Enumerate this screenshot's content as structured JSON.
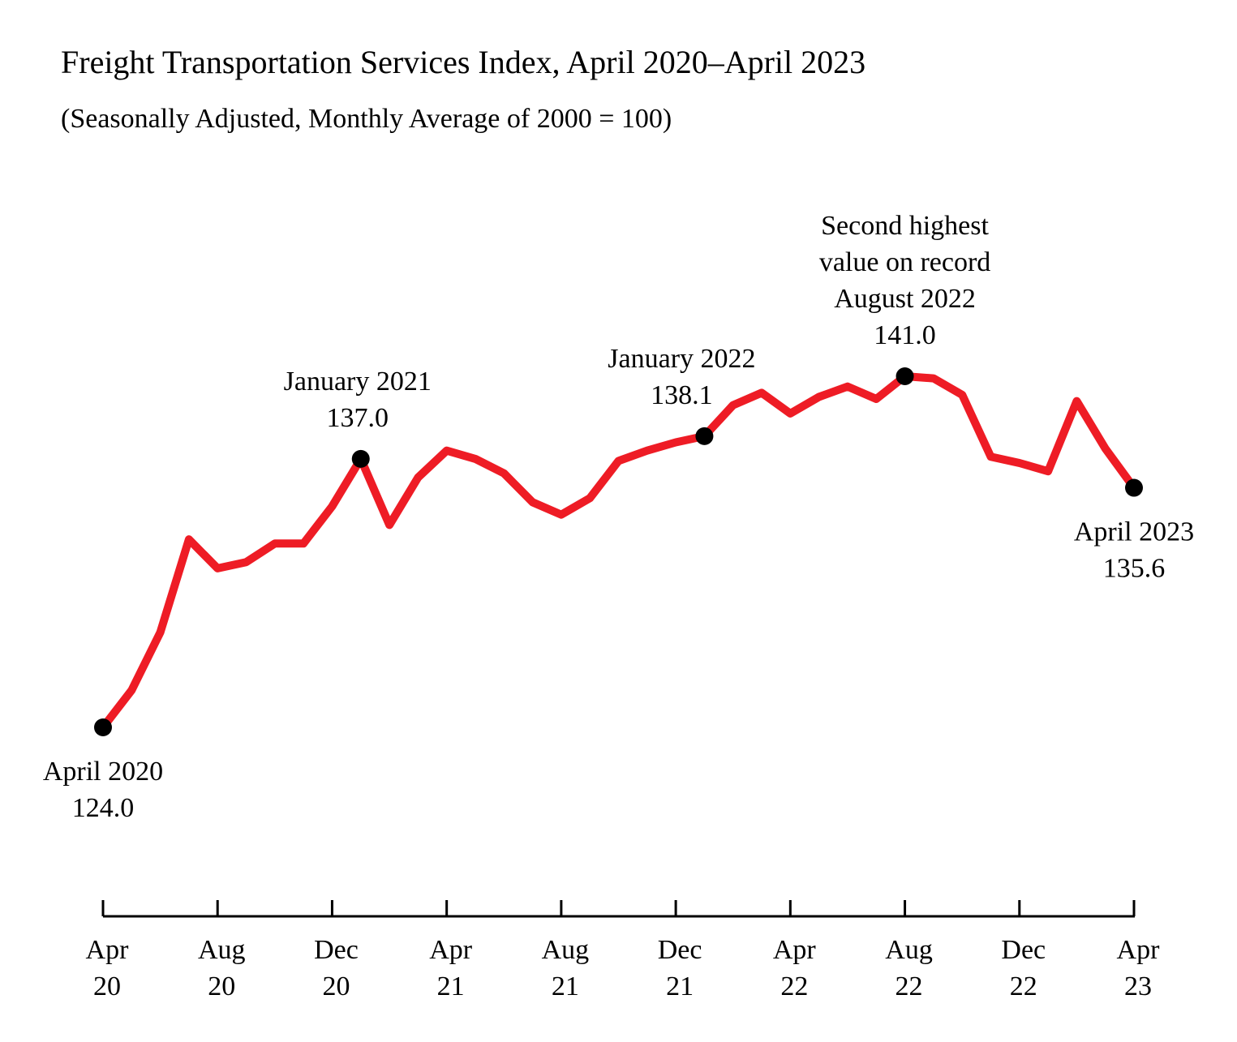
{
  "chart_data": {
    "type": "line",
    "title": "Freight Transportation Services Index, April 2020–April 2023",
    "subtitle": "(Seasonally Adjusted, Monthly Average of 2000 = 100)",
    "xlabel": "",
    "ylabel": "",
    "grid": false,
    "line_color": "#ee1c25",
    "x": [
      "2020-04",
      "2020-05",
      "2020-06",
      "2020-07",
      "2020-08",
      "2020-09",
      "2020-10",
      "2020-11",
      "2020-12",
      "2021-01",
      "2021-02",
      "2021-03",
      "2021-04",
      "2021-05",
      "2021-06",
      "2021-07",
      "2021-08",
      "2021-09",
      "2021-10",
      "2021-11",
      "2021-12",
      "2022-01",
      "2022-02",
      "2022-03",
      "2022-04",
      "2022-05",
      "2022-06",
      "2022-07",
      "2022-08",
      "2022-09",
      "2022-10",
      "2022-11",
      "2022-12",
      "2023-01",
      "2023-02",
      "2023-03",
      "2023-04"
    ],
    "values": [
      124.0,
      125.8,
      128.6,
      133.1,
      131.7,
      132.0,
      132.9,
      132.9,
      134.7,
      137.0,
      133.8,
      136.1,
      137.4,
      137.0,
      136.3,
      134.9,
      134.3,
      135.1,
      136.9,
      137.4,
      137.8,
      138.1,
      139.6,
      140.2,
      139.2,
      140.0,
      140.5,
      139.9,
      141.0,
      140.9,
      140.1,
      137.1,
      136.8,
      136.4,
      139.8,
      137.5,
      135.6
    ],
    "x_ticks": [
      {
        "line1": "Apr",
        "line2": "20"
      },
      {
        "line1": "Aug",
        "line2": "20"
      },
      {
        "line1": "Dec",
        "line2": "20"
      },
      {
        "line1": "Apr",
        "line2": "21"
      },
      {
        "line1": "Aug",
        "line2": "21"
      },
      {
        "line1": "Dec",
        "line2": "21"
      },
      {
        "line1": "Apr",
        "line2": "22"
      },
      {
        "line1": "Aug",
        "line2": "22"
      },
      {
        "line1": "Dec",
        "line2": "22"
      },
      {
        "line1": "Apr",
        "line2": "23"
      }
    ],
    "annotations": [
      {
        "index": 0,
        "lines": [
          "April 2020",
          "124.0"
        ],
        "position": "below"
      },
      {
        "index": 9,
        "lines": [
          "January 2021",
          "137.0"
        ],
        "position": "above"
      },
      {
        "index": 21,
        "lines": [
          "January 2022",
          "138.1"
        ],
        "position": "above-left"
      },
      {
        "index": 28,
        "lines": [
          "Second highest",
          "value on record",
          "August 2022",
          "141.0"
        ],
        "position": "above"
      },
      {
        "index": 36,
        "lines": [
          "April 2023",
          "135.6"
        ],
        "position": "below"
      }
    ]
  }
}
